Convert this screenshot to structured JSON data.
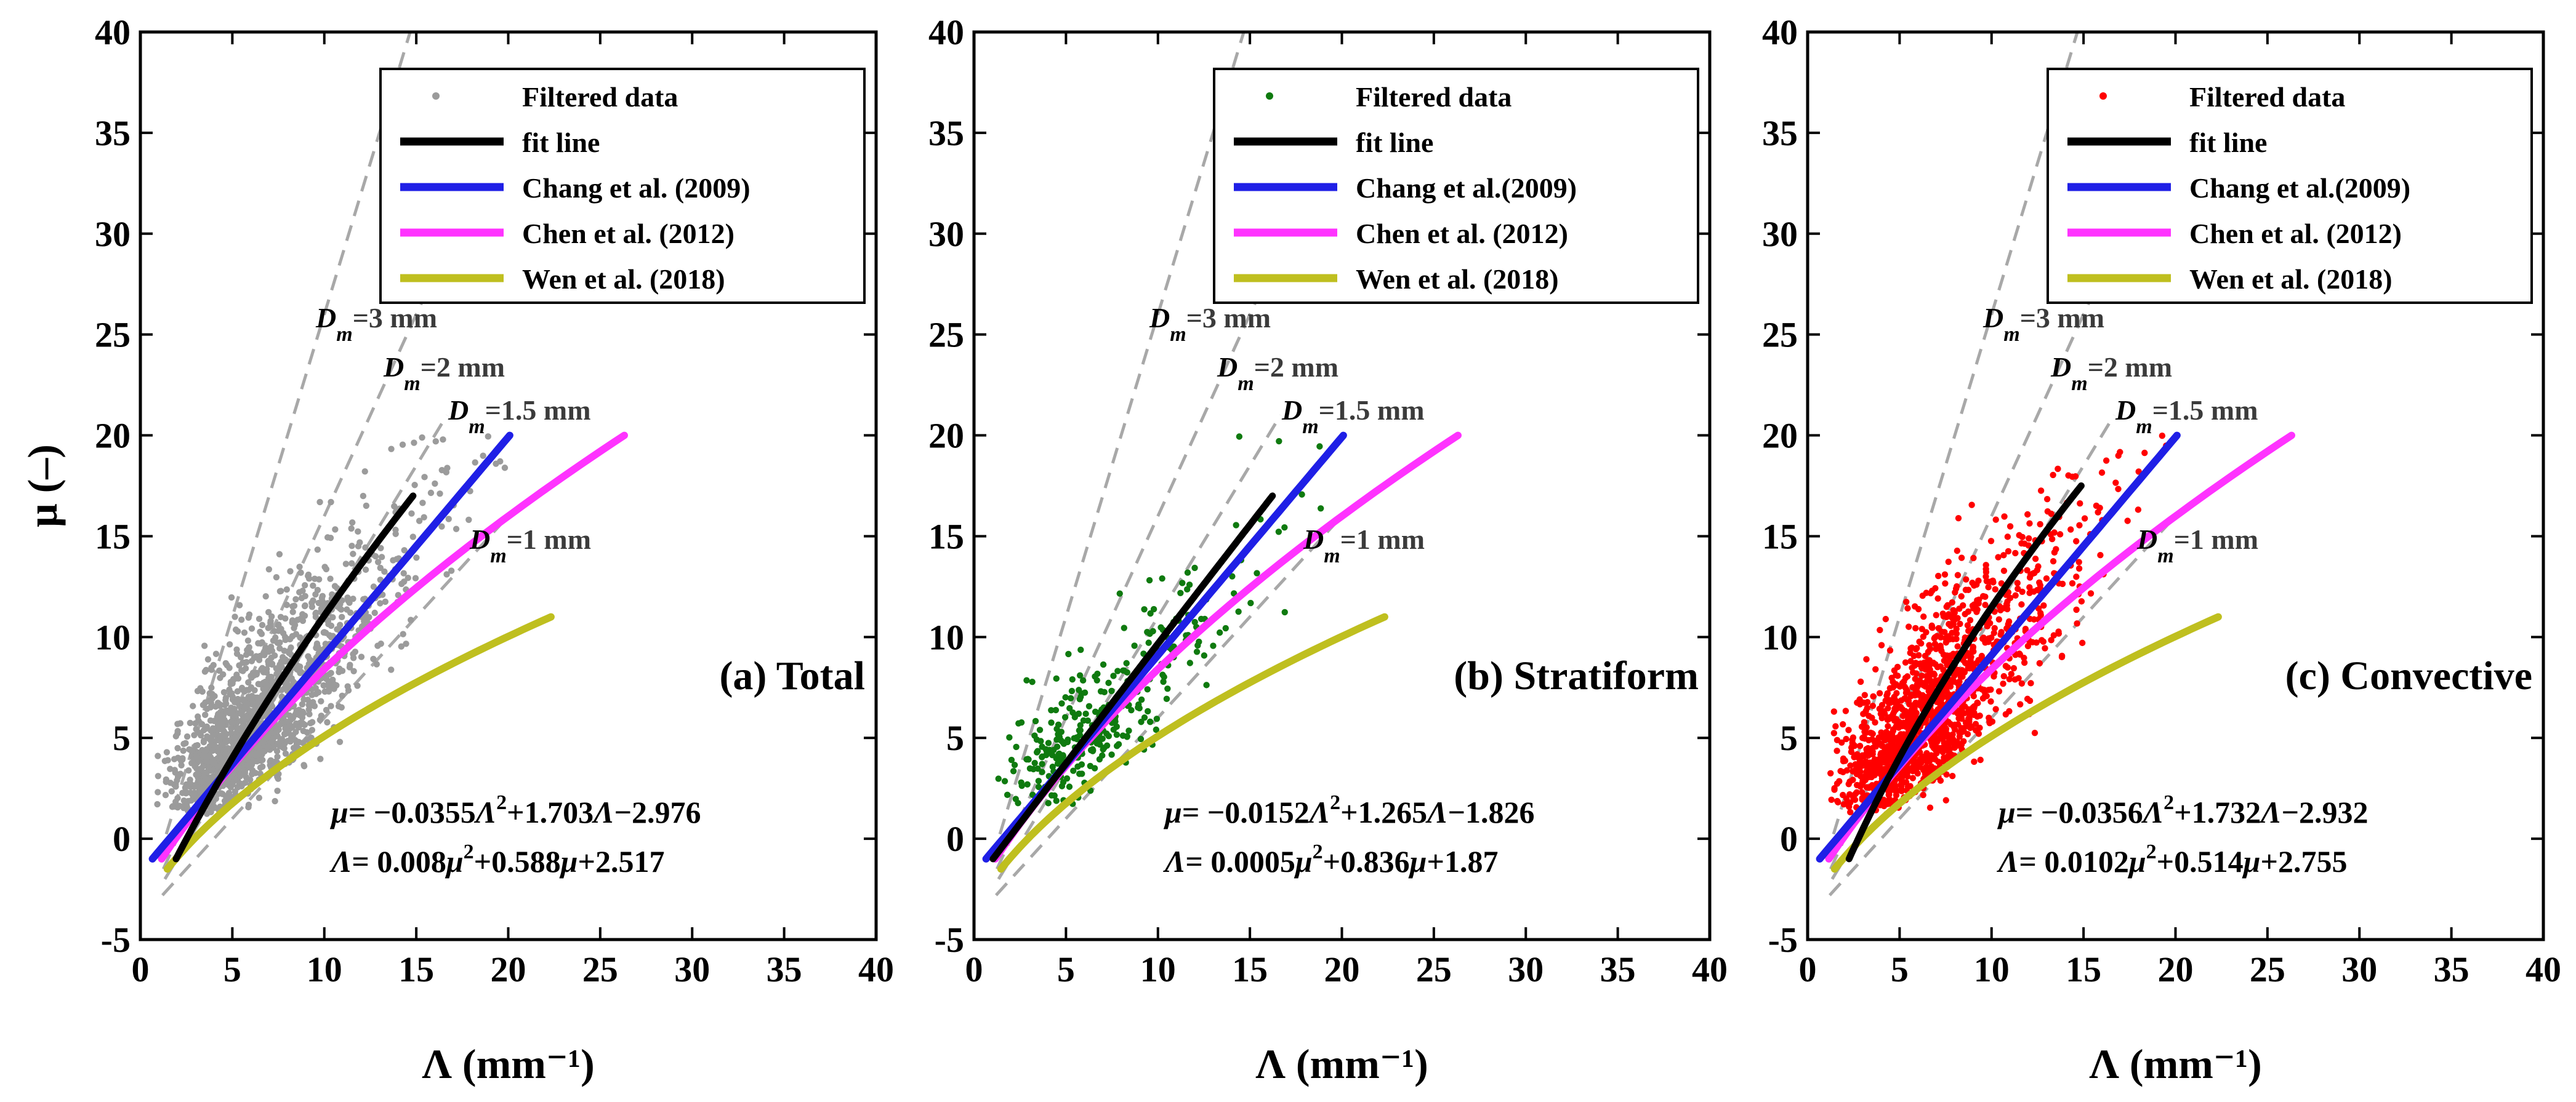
{
  "chart_data": [
    {
      "type": "scatter",
      "panel_label": "(a) Total",
      "xlabel": "Λ (mm⁻¹)",
      "ylabel": "μ (–)",
      "xlim": [
        0,
        40
      ],
      "ylim": [
        -5,
        40
      ],
      "xticks": [
        "0",
        "5",
        "10",
        "15",
        "20",
        "25",
        "30",
        "35",
        "40"
      ],
      "yticks": [
        "-5",
        "0",
        "5",
        "10",
        "15",
        "20",
        "25",
        "30",
        "35",
        "40"
      ],
      "scatter": {
        "name": "Filtered data",
        "color": "#9b9b9b",
        "count": 1600,
        "seed": 11
      },
      "fit": {
        "name": "fit line",
        "color": "#000000",
        "a": 0.008,
        "b": 0.588,
        "c": 2.517,
        "mu_range": [
          -1,
          17
        ]
      },
      "legend": [
        {
          "label": "Filtered data",
          "color": "#9b9b9b",
          "kind": "marker"
        },
        {
          "label": "fit line",
          "color": "#000000",
          "kind": "line"
        },
        {
          "label": "Chang et al. (2009)",
          "color": "#1f1fe6",
          "kind": "line"
        },
        {
          "label": "Chen et al. (2012)",
          "color": "#ff33ff",
          "kind": "line"
        },
        {
          "label": "Wen et al. (2018)",
          "color": "#bfbf1f",
          "kind": "line"
        }
      ],
      "equations": {
        "mu_expr": {
          "lhs": "μ",
          "parts": [
            "= −0.0355",
            "Λ",
            "2",
            "+1.703",
            "Λ",
            "−2.976"
          ]
        },
        "lambda_expr": {
          "lhs": "Λ",
          "parts": [
            "= 0.008",
            "μ",
            "2",
            "+0.588",
            "μ",
            "+2.517"
          ]
        }
      },
      "dm_labels": [
        {
          "sym": "D",
          "sub": "m",
          "text": "=3 mm"
        },
        {
          "sym": "D",
          "sub": "m",
          "text": "=2 mm"
        },
        {
          "sym": "D",
          "sub": "m",
          "text": "=1.5 mm"
        },
        {
          "sym": "D",
          "sub": "m",
          "text": "=1 mm"
        }
      ]
    },
    {
      "type": "scatter",
      "panel_label": "(b) Stratiform",
      "xlabel": "Λ (mm⁻¹)",
      "ylabel": "",
      "xlim": [
        0,
        40
      ],
      "ylim": [
        -5,
        40
      ],
      "xticks": [
        "0",
        "5",
        "10",
        "15",
        "20",
        "25",
        "30",
        "35",
        "40"
      ],
      "yticks": [
        "-5",
        "0",
        "5",
        "10",
        "15",
        "20",
        "25",
        "30",
        "35",
        "40"
      ],
      "scatter": {
        "name": "Filtered data",
        "color": "#0f7a0f",
        "count": 320,
        "seed": 23
      },
      "fit": {
        "name": "fit line",
        "color": "#000000",
        "a": 0.0005,
        "b": 0.836,
        "c": 1.87,
        "mu_range": [
          -1,
          17
        ]
      },
      "legend": [
        {
          "label": "Filtered data",
          "color": "#0f7a0f",
          "kind": "marker"
        },
        {
          "label": "fit line",
          "color": "#000000",
          "kind": "line"
        },
        {
          "label": "Chang et al.(2009)",
          "color": "#1f1fe6",
          "kind": "line"
        },
        {
          "label": "Chen et al. (2012)",
          "color": "#ff33ff",
          "kind": "line"
        },
        {
          "label": "Wen et al. (2018)",
          "color": "#bfbf1f",
          "kind": "line"
        }
      ],
      "equations": {
        "mu_expr": {
          "lhs": "μ",
          "parts": [
            "= −0.0152",
            "Λ",
            "2",
            "+1.265",
            "Λ",
            "−1.826"
          ]
        },
        "lambda_expr": {
          "lhs": "Λ",
          "parts": [
            "= 0.0005",
            "μ",
            "2",
            "+0.836",
            "μ",
            "+1.87"
          ]
        }
      },
      "dm_labels": [
        {
          "sym": "D",
          "sub": "m",
          "text": "=3 mm"
        },
        {
          "sym": "D",
          "sub": "m",
          "text": "=2 mm"
        },
        {
          "sym": "D",
          "sub": "m",
          "text": "=1.5 mm"
        },
        {
          "sym": "D",
          "sub": "m",
          "text": "=1 mm"
        }
      ]
    },
    {
      "type": "scatter",
      "panel_label": "(c) Convective",
      "xlabel": "Λ (mm⁻¹)",
      "ylabel": "",
      "xlim": [
        0,
        40
      ],
      "ylim": [
        -5,
        40
      ],
      "xticks": [
        "0",
        "5",
        "10",
        "15",
        "20",
        "25",
        "30",
        "35",
        "40"
      ],
      "yticks": [
        "-5",
        "0",
        "5",
        "10",
        "15",
        "20",
        "25",
        "30",
        "35",
        "40"
      ],
      "scatter": {
        "name": "Filtered data",
        "color": "#ff0000",
        "count": 1400,
        "seed": 37
      },
      "fit": {
        "name": "fit line",
        "color": "#000000",
        "a": 0.0102,
        "b": 0.514,
        "c": 2.755,
        "mu_range": [
          -1,
          17.5
        ]
      },
      "legend": [
        {
          "label": "Filtered data",
          "color": "#ff0000",
          "kind": "marker"
        },
        {
          "label": "fit line",
          "color": "#000000",
          "kind": "line"
        },
        {
          "label": "Chang et al.(2009)",
          "color": "#1f1fe6",
          "kind": "line"
        },
        {
          "label": "Chen et al. (2012)",
          "color": "#ff33ff",
          "kind": "line"
        },
        {
          "label": "Wen et al. (2018)",
          "color": "#bfbf1f",
          "kind": "line"
        }
      ],
      "equations": {
        "mu_expr": {
          "lhs": "μ",
          "parts": [
            "= −0.0356",
            "Λ",
            "2",
            "+1.732",
            "Λ",
            "−2.932"
          ]
        },
        "lambda_expr": {
          "lhs": "Λ",
          "parts": [
            "= 0.0102",
            "μ",
            "2",
            "+0.514",
            "μ",
            "+2.755"
          ]
        }
      },
      "dm_labels": [
        {
          "sym": "D",
          "sub": "m",
          "text": "=3 mm"
        },
        {
          "sym": "D",
          "sub": "m",
          "text": "=2 mm"
        },
        {
          "sym": "D",
          "sub": "m",
          "text": "=1.5 mm"
        },
        {
          "sym": "D",
          "sub": "m",
          "text": "=1 mm"
        }
      ]
    }
  ],
  "reference_curves": {
    "chang_2009": {
      "name": "Chang et al. (2009)",
      "a": 0.0,
      "b": 0.925,
      "c": 1.58,
      "mu_range": [
        -1,
        20
      ],
      "color": "#1f1fe6"
    },
    "chen_2012": {
      "name": "Chen et al. (2012)",
      "a": 0.0222,
      "b": 0.776,
      "c": 1.91,
      "mu_range": [
        -1,
        20
      ],
      "color": "#ff33ff"
    },
    "wen_2018": {
      "name": "Wen et al. (2018)",
      "a": 0.063,
      "b": 1.07,
      "c": 2.93,
      "mu_range": [
        -1.5,
        11
      ],
      "color": "#bfbf1f"
    }
  },
  "dm_reference_lines": [
    {
      "dm_mm": 3,
      "mu_range": [
        -1,
        40
      ]
    },
    {
      "dm_mm": 2,
      "mu_range": [
        -1.5,
        28
      ]
    },
    {
      "dm_mm": 1.5,
      "mu_range": [
        -2,
        21
      ]
    },
    {
      "dm_mm": 1,
      "mu_range": [
        -2.8,
        16
      ]
    }
  ]
}
